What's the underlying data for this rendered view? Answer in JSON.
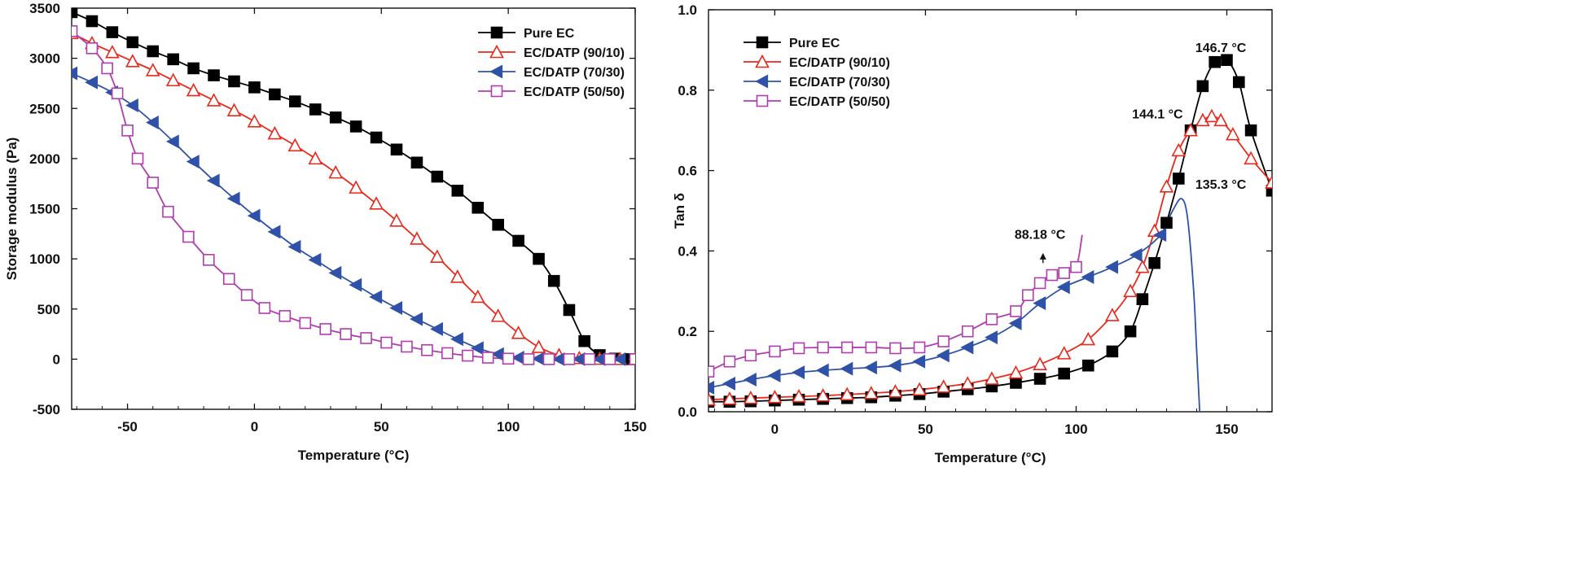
{
  "chart_data": [
    {
      "type": "line",
      "xlabel": "Temperature (°C)",
      "ylabel": "Storage modulus (Pa)",
      "xlim": [
        -72,
        150
      ],
      "ylim": [
        -500,
        3500
      ],
      "xticks": [
        "-50",
        "0",
        "50",
        "100",
        "150"
      ],
      "yticks": [
        "-500",
        "0",
        "500",
        "1000",
        "1500",
        "2000",
        "2500",
        "3000",
        "3500"
      ],
      "legend_position": "top-right",
      "series": [
        {
          "name": "Pure EC",
          "color": "#000000",
          "marker": "filled-square",
          "x": [
            -72,
            -64,
            -56,
            -48,
            -40,
            -32,
            -24,
            -16,
            -8,
            0,
            8,
            16,
            24,
            32,
            40,
            48,
            56,
            64,
            72,
            80,
            88,
            96,
            104,
            112,
            118,
            124,
            130,
            136,
            142,
            148
          ],
          "y": [
            3460,
            3370,
            3260,
            3160,
            3070,
            2990,
            2900,
            2830,
            2770,
            2710,
            2640,
            2570,
            2490,
            2410,
            2320,
            2210,
            2090,
            1960,
            1820,
            1680,
            1510,
            1340,
            1180,
            1000,
            780,
            490,
            180,
            40,
            5,
            0
          ]
        },
        {
          "name": "EC/DATP (90/10)",
          "color": "#e8291c",
          "marker": "open-triangle-up",
          "x": [
            -72,
            -64,
            -56,
            -48,
            -40,
            -32,
            -24,
            -16,
            -8,
            0,
            8,
            16,
            24,
            32,
            40,
            48,
            56,
            64,
            72,
            80,
            88,
            96,
            104,
            112,
            120,
            128,
            136,
            144,
            150
          ],
          "y": [
            3250,
            3150,
            3060,
            2970,
            2880,
            2780,
            2680,
            2580,
            2480,
            2370,
            2250,
            2130,
            2000,
            1860,
            1710,
            1550,
            1380,
            1200,
            1020,
            820,
            620,
            430,
            260,
            120,
            40,
            10,
            2,
            0,
            0
          ]
        },
        {
          "name": "EC/DATP (70/30)",
          "color": "#2f52a8",
          "marker": "filled-triangle-left",
          "x": [
            -72,
            -64,
            -56,
            -48,
            -40,
            -32,
            -24,
            -16,
            -8,
            0,
            8,
            16,
            24,
            32,
            40,
            48,
            56,
            64,
            72,
            80,
            88,
            96,
            104,
            112,
            120,
            128,
            136,
            144,
            150
          ],
          "y": [
            2850,
            2760,
            2660,
            2530,
            2360,
            2170,
            1970,
            1780,
            1600,
            1430,
            1270,
            1120,
            990,
            860,
            740,
            620,
            510,
            400,
            300,
            200,
            110,
            50,
            15,
            5,
            0,
            0,
            0,
            0,
            0
          ]
        },
        {
          "name": "EC/DATP (50/50)",
          "color": "#b03cb0",
          "marker": "open-square",
          "x": [
            -72,
            -64,
            -58,
            -54,
            -50,
            -46,
            -40,
            -34,
            -26,
            -18,
            -10,
            -3,
            4,
            12,
            20,
            28,
            36,
            44,
            52,
            60,
            68,
            76,
            84,
            92,
            100,
            108,
            116,
            124,
            132,
            140,
            150
          ],
          "y": [
            3270,
            3100,
            2900,
            2650,
            2280,
            2000,
            1760,
            1470,
            1220,
            990,
            800,
            640,
            510,
            430,
            360,
            300,
            250,
            210,
            165,
            125,
            90,
            60,
            35,
            15,
            5,
            0,
            0,
            0,
            0,
            0,
            0
          ]
        }
      ]
    },
    {
      "type": "line",
      "xlabel": "Temperature (°C)",
      "ylabel": "Tan δ",
      "xlim": [
        -22,
        165
      ],
      "ylim": [
        0.0,
        1.0
      ],
      "xticks": [
        "0",
        "50",
        "100",
        "150"
      ],
      "yticks": [
        "0.0",
        "0.2",
        "0.4",
        "0.6",
        "0.8",
        "1.0"
      ],
      "legend_position": "top-left",
      "annotations": [
        {
          "text": "146.7 °C",
          "x": 148,
          "y": 0.895
        },
        {
          "text": "144.1 °C",
          "x": 127,
          "y": 0.73
        },
        {
          "text": "135.3 °C",
          "x": 148,
          "y": 0.555
        },
        {
          "text": "88.18 °C",
          "x": 88,
          "y": 0.43
        }
      ],
      "series": [
        {
          "name": "Pure EC",
          "color": "#000000",
          "marker": "filled-square",
          "x": [
            -22,
            -15,
            -8,
            0,
            8,
            16,
            24,
            32,
            40,
            48,
            56,
            64,
            72,
            80,
            88,
            96,
            104,
            112,
            118,
            122,
            126,
            130,
            134,
            138,
            142,
            146,
            150,
            154,
            158,
            165
          ],
          "y": [
            0.025,
            0.025,
            0.026,
            0.028,
            0.03,
            0.032,
            0.034,
            0.036,
            0.04,
            0.044,
            0.05,
            0.056,
            0.063,
            0.072,
            0.082,
            0.095,
            0.115,
            0.15,
            0.2,
            0.28,
            0.37,
            0.47,
            0.58,
            0.7,
            0.81,
            0.87,
            0.875,
            0.82,
            0.7,
            0.55
          ]
        },
        {
          "name": "EC/DATP (90/10)",
          "color": "#e8291c",
          "marker": "open-triangle-up",
          "x": [
            -22,
            -15,
            -8,
            0,
            8,
            16,
            24,
            32,
            40,
            48,
            56,
            64,
            72,
            80,
            88,
            96,
            104,
            112,
            118,
            122,
            126,
            130,
            134,
            138,
            142,
            145,
            148,
            152,
            158,
            165
          ],
          "y": [
            0.03,
            0.032,
            0.034,
            0.036,
            0.038,
            0.04,
            0.043,
            0.046,
            0.05,
            0.055,
            0.062,
            0.07,
            0.082,
            0.097,
            0.118,
            0.145,
            0.18,
            0.24,
            0.3,
            0.36,
            0.45,
            0.56,
            0.65,
            0.7,
            0.725,
            0.735,
            0.725,
            0.69,
            0.63,
            0.57
          ]
        },
        {
          "name": "EC/DATP (70/30)",
          "color": "#2f52a8",
          "marker": "filled-triangle-left",
          "x": [
            -22,
            -15,
            -8,
            0,
            8,
            16,
            24,
            32,
            40,
            48,
            56,
            64,
            72,
            80,
            88,
            96,
            104,
            112,
            120,
            128,
            132,
            135,
            137,
            139,
            140,
            141
          ],
          "y": [
            0.06,
            0.07,
            0.08,
            0.09,
            0.098,
            0.103,
            0.107,
            0.11,
            0.115,
            0.125,
            0.14,
            0.16,
            0.185,
            0.22,
            0.27,
            0.31,
            0.335,
            0.36,
            0.39,
            0.44,
            0.5,
            0.53,
            0.48,
            0.3,
            0.15,
            0.0
          ]
        },
        {
          "name": "EC/DATP (50/50)",
          "color": "#b03cb0",
          "marker": "open-square",
          "x": [
            -22,
            -15,
            -8,
            0,
            8,
            16,
            24,
            32,
            40,
            48,
            56,
            64,
            72,
            80,
            84,
            88,
            92,
            96,
            100,
            102
          ],
          "y": [
            0.1,
            0.125,
            0.14,
            0.15,
            0.158,
            0.16,
            0.16,
            0.16,
            0.158,
            0.16,
            0.175,
            0.2,
            0.23,
            0.25,
            0.29,
            0.32,
            0.34,
            0.345,
            0.36,
            0.44
          ]
        }
      ]
    }
  ]
}
